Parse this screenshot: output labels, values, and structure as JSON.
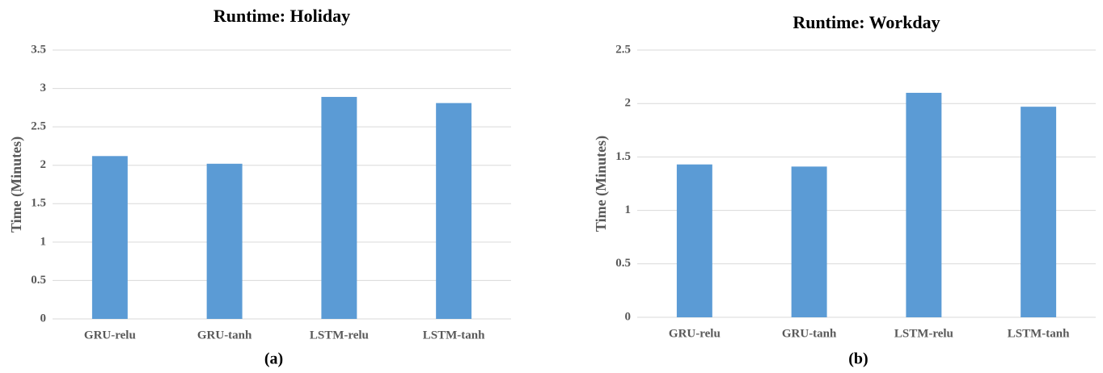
{
  "chart_data": [
    {
      "type": "bar",
      "title": "Runtime: Holiday",
      "y_label": "Time (Minutes)",
      "caption": "(a)",
      "categories": [
        "GRU-relu",
        "GRU-tanh",
        "LSTM-relu",
        "LSTM-tanh"
      ],
      "values": [
        2.12,
        2.02,
        2.89,
        2.81
      ],
      "color": "#5b9bd5",
      "ylim": [
        0,
        3.5
      ],
      "yticks": [
        0,
        0.5,
        1,
        1.5,
        2,
        2.5,
        3,
        3.5
      ],
      "grid": true
    },
    {
      "type": "bar",
      "title": "Runtime: Workday",
      "y_label": "Time (Minutes)",
      "caption": "(b)",
      "categories": [
        "GRU-relu",
        "GRU-tanh",
        "LSTM-relu",
        "LSTM-tanh"
      ],
      "values": [
        1.43,
        1.41,
        2.1,
        1.97
      ],
      "color": "#5b9bd5",
      "ylim": [
        0,
        2.5
      ],
      "yticks": [
        0,
        0.5,
        1,
        1.5,
        2,
        2.5
      ],
      "grid": true
    }
  ]
}
